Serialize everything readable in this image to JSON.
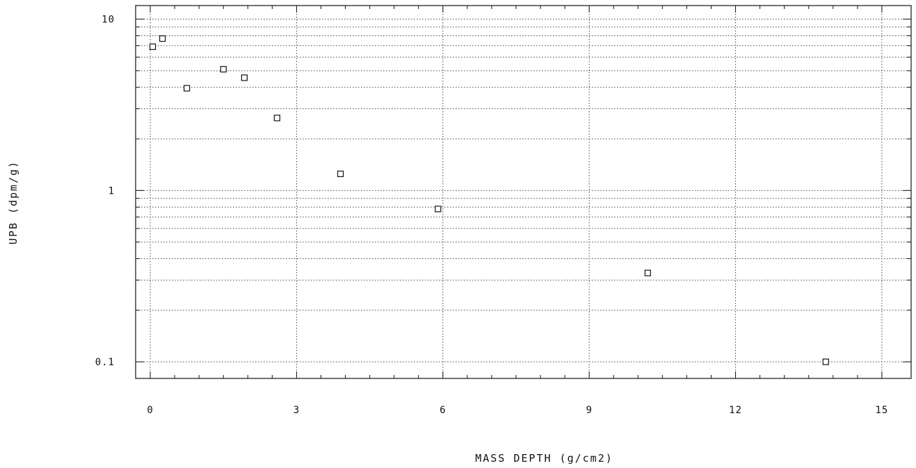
{
  "chart_data": {
    "type": "scatter",
    "xlabel": "MASS DEPTH (g/cm2)",
    "ylabel": "UPB (dpm/g)",
    "xlim": [
      -0.3,
      15.6
    ],
    "ylim": [
      0.08,
      12
    ],
    "y_scale": "log",
    "x_ticks": [
      0,
      3,
      6,
      9,
      12,
      15
    ],
    "x_tick_labels": [
      "0",
      "3",
      "6",
      "9",
      "12",
      "15"
    ],
    "y_ticks": [
      0.1,
      1,
      10
    ],
    "y_tick_labels": [
      "0.1",
      "1",
      "10"
    ],
    "grid": true,
    "marker": "open-square",
    "series": [
      {
        "x": [
          0.05,
          0.25,
          0.75,
          1.5,
          1.93,
          2.6,
          3.9,
          5.9,
          10.2,
          13.85
        ],
        "y": [
          6.9,
          7.7,
          3.95,
          5.1,
          4.55,
          2.65,
          1.25,
          0.78,
          0.33,
          0.1
        ]
      }
    ]
  }
}
